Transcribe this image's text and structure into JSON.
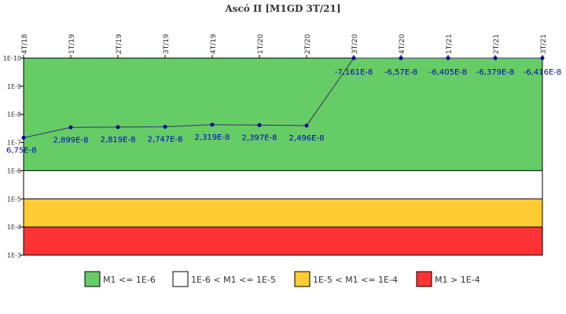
{
  "chart_data": {
    "type": "line",
    "title": "Ascó II [M1GD 3T/21]",
    "x": [
      "4T/18",
      "1T/19",
      "2T/19",
      "3T/19",
      "4T/19",
      "1T/20",
      "2T/20",
      "3T/20",
      "4T/20",
      "1T/21",
      "2T/21",
      "3T/21"
    ],
    "series": [
      {
        "values": [
          6.75e-08,
          2.899e-08,
          2.819e-08,
          2.747e-08,
          2.319e-08,
          2.397e-08,
          2.496e-08,
          -7.161e-08,
          -6.57e-08,
          -6.405e-08,
          -6.379e-08,
          -6.416e-08
        ],
        "labels": [
          "6,75E-8",
          "2,899E-8",
          "2,819E-8",
          "2,747E-8",
          "2,319E-8",
          "2,397E-8",
          "2,496E-8",
          "-7,161E-8",
          "-6,57E-8",
          "-6,405E-8",
          "-6,379E-8",
          "-6,416E-8"
        ],
        "color": "#333366",
        "marker_color": "#000099"
      }
    ],
    "y_scale": "log",
    "y_axis_reversed": true,
    "y_ticks": [
      "1E-10",
      "1E-9",
      "1E-8",
      "1E-7",
      "1E-6",
      "1E-5",
      "1E-4",
      "1E-3"
    ],
    "ylim": [
      1e-10,
      0.001
    ],
    "bands": [
      {
        "from": 1e-10,
        "to": 1e-06,
        "color": "#66cc66",
        "legend": "M1 <= 1E-6"
      },
      {
        "from": 1e-06,
        "to": 1e-05,
        "color": "#ffffff",
        "legend": "1E-6 < M1 <= 1E-5"
      },
      {
        "from": 1e-05,
        "to": 0.0001,
        "color": "#ffcc33",
        "legend": "1E-5 < M1 <= 1E-4"
      },
      {
        "from": 0.0001,
        "to": 0.001,
        "color": "#ff3333",
        "legend": "M1 > 1E-4"
      }
    ],
    "legend_position": "bottom"
  }
}
